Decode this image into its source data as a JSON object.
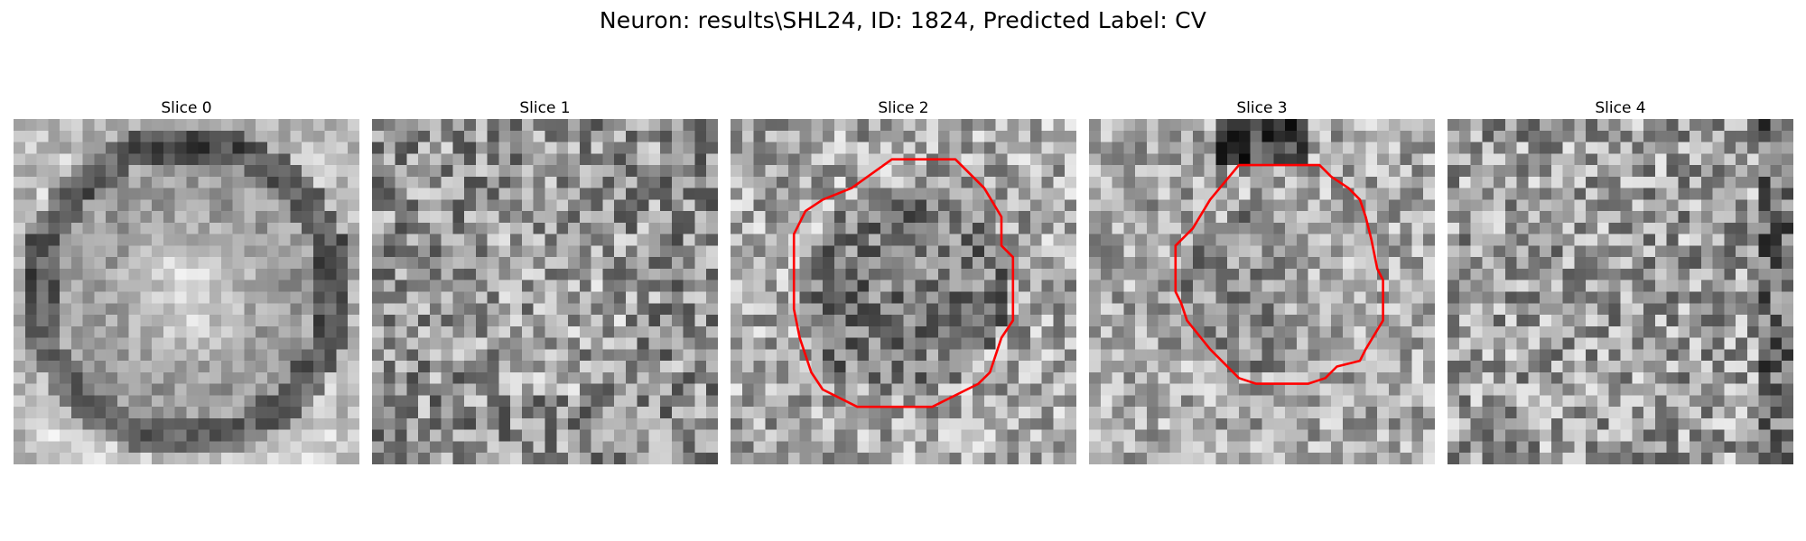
{
  "figure": {
    "suptitle": "Neuron: results\\SHL24, ID: 1824, Predicted Label: CV",
    "colormap": "gray",
    "grid_size": 30,
    "contour_color": "#ff0000"
  },
  "panels": [
    {
      "title": "Slice 0",
      "contour": false,
      "seed": 11,
      "pattern": "ring"
    },
    {
      "title": "Slice 1",
      "contour": false,
      "seed": 23,
      "pattern": "noise"
    },
    {
      "title": "Slice 2",
      "contour": true,
      "seed": 37,
      "pattern": "dark-center"
    },
    {
      "title": "Slice 3",
      "contour": true,
      "seed": 51,
      "pattern": "mixed"
    },
    {
      "title": "Slice 4",
      "contour": false,
      "seed": 67,
      "pattern": "noise-edge"
    }
  ]
}
